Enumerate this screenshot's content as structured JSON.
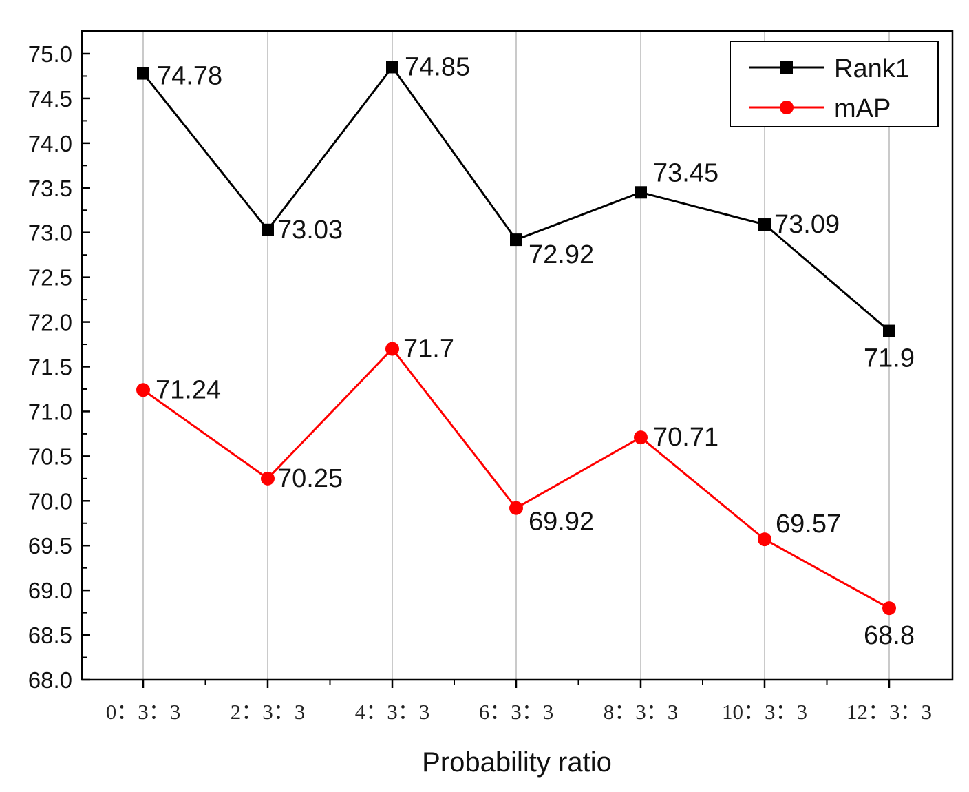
{
  "chart_data": {
    "type": "line",
    "title": "",
    "xlabel": "Probability ratio",
    "ylabel": "",
    "categories": [
      "0：3：3",
      "2：3：3",
      "4：3：3",
      "6：3：3",
      "8：3：3",
      "10：3：3",
      "12：3：3"
    ],
    "ylim": [
      68.0,
      75.0
    ],
    "yticks": [
      "68.0",
      "68.5",
      "69.0",
      "69.5",
      "70.0",
      "70.5",
      "71.0",
      "71.5",
      "72.0",
      "72.5",
      "73.0",
      "73.5",
      "74.0",
      "74.5",
      "75.0"
    ],
    "grid": "vertical",
    "legend_position": "top-right",
    "series": [
      {
        "name": "Rank1",
        "color": "#000000",
        "marker": "square",
        "values": [
          74.78,
          73.03,
          74.85,
          72.92,
          73.45,
          73.09,
          71.9
        ],
        "labels": [
          "74.78",
          "73.03",
          "74.85",
          "72.92",
          "73.45",
          "73.09",
          "71.9"
        ]
      },
      {
        "name": "mAP",
        "color": "#ff0000",
        "marker": "circle",
        "values": [
          71.24,
          70.25,
          71.7,
          69.92,
          70.71,
          69.57,
          68.8
        ],
        "labels": [
          "71.24",
          "70.25",
          "71.7",
          "69.92",
          "70.71",
          "69.57",
          "68.8"
        ]
      }
    ]
  }
}
